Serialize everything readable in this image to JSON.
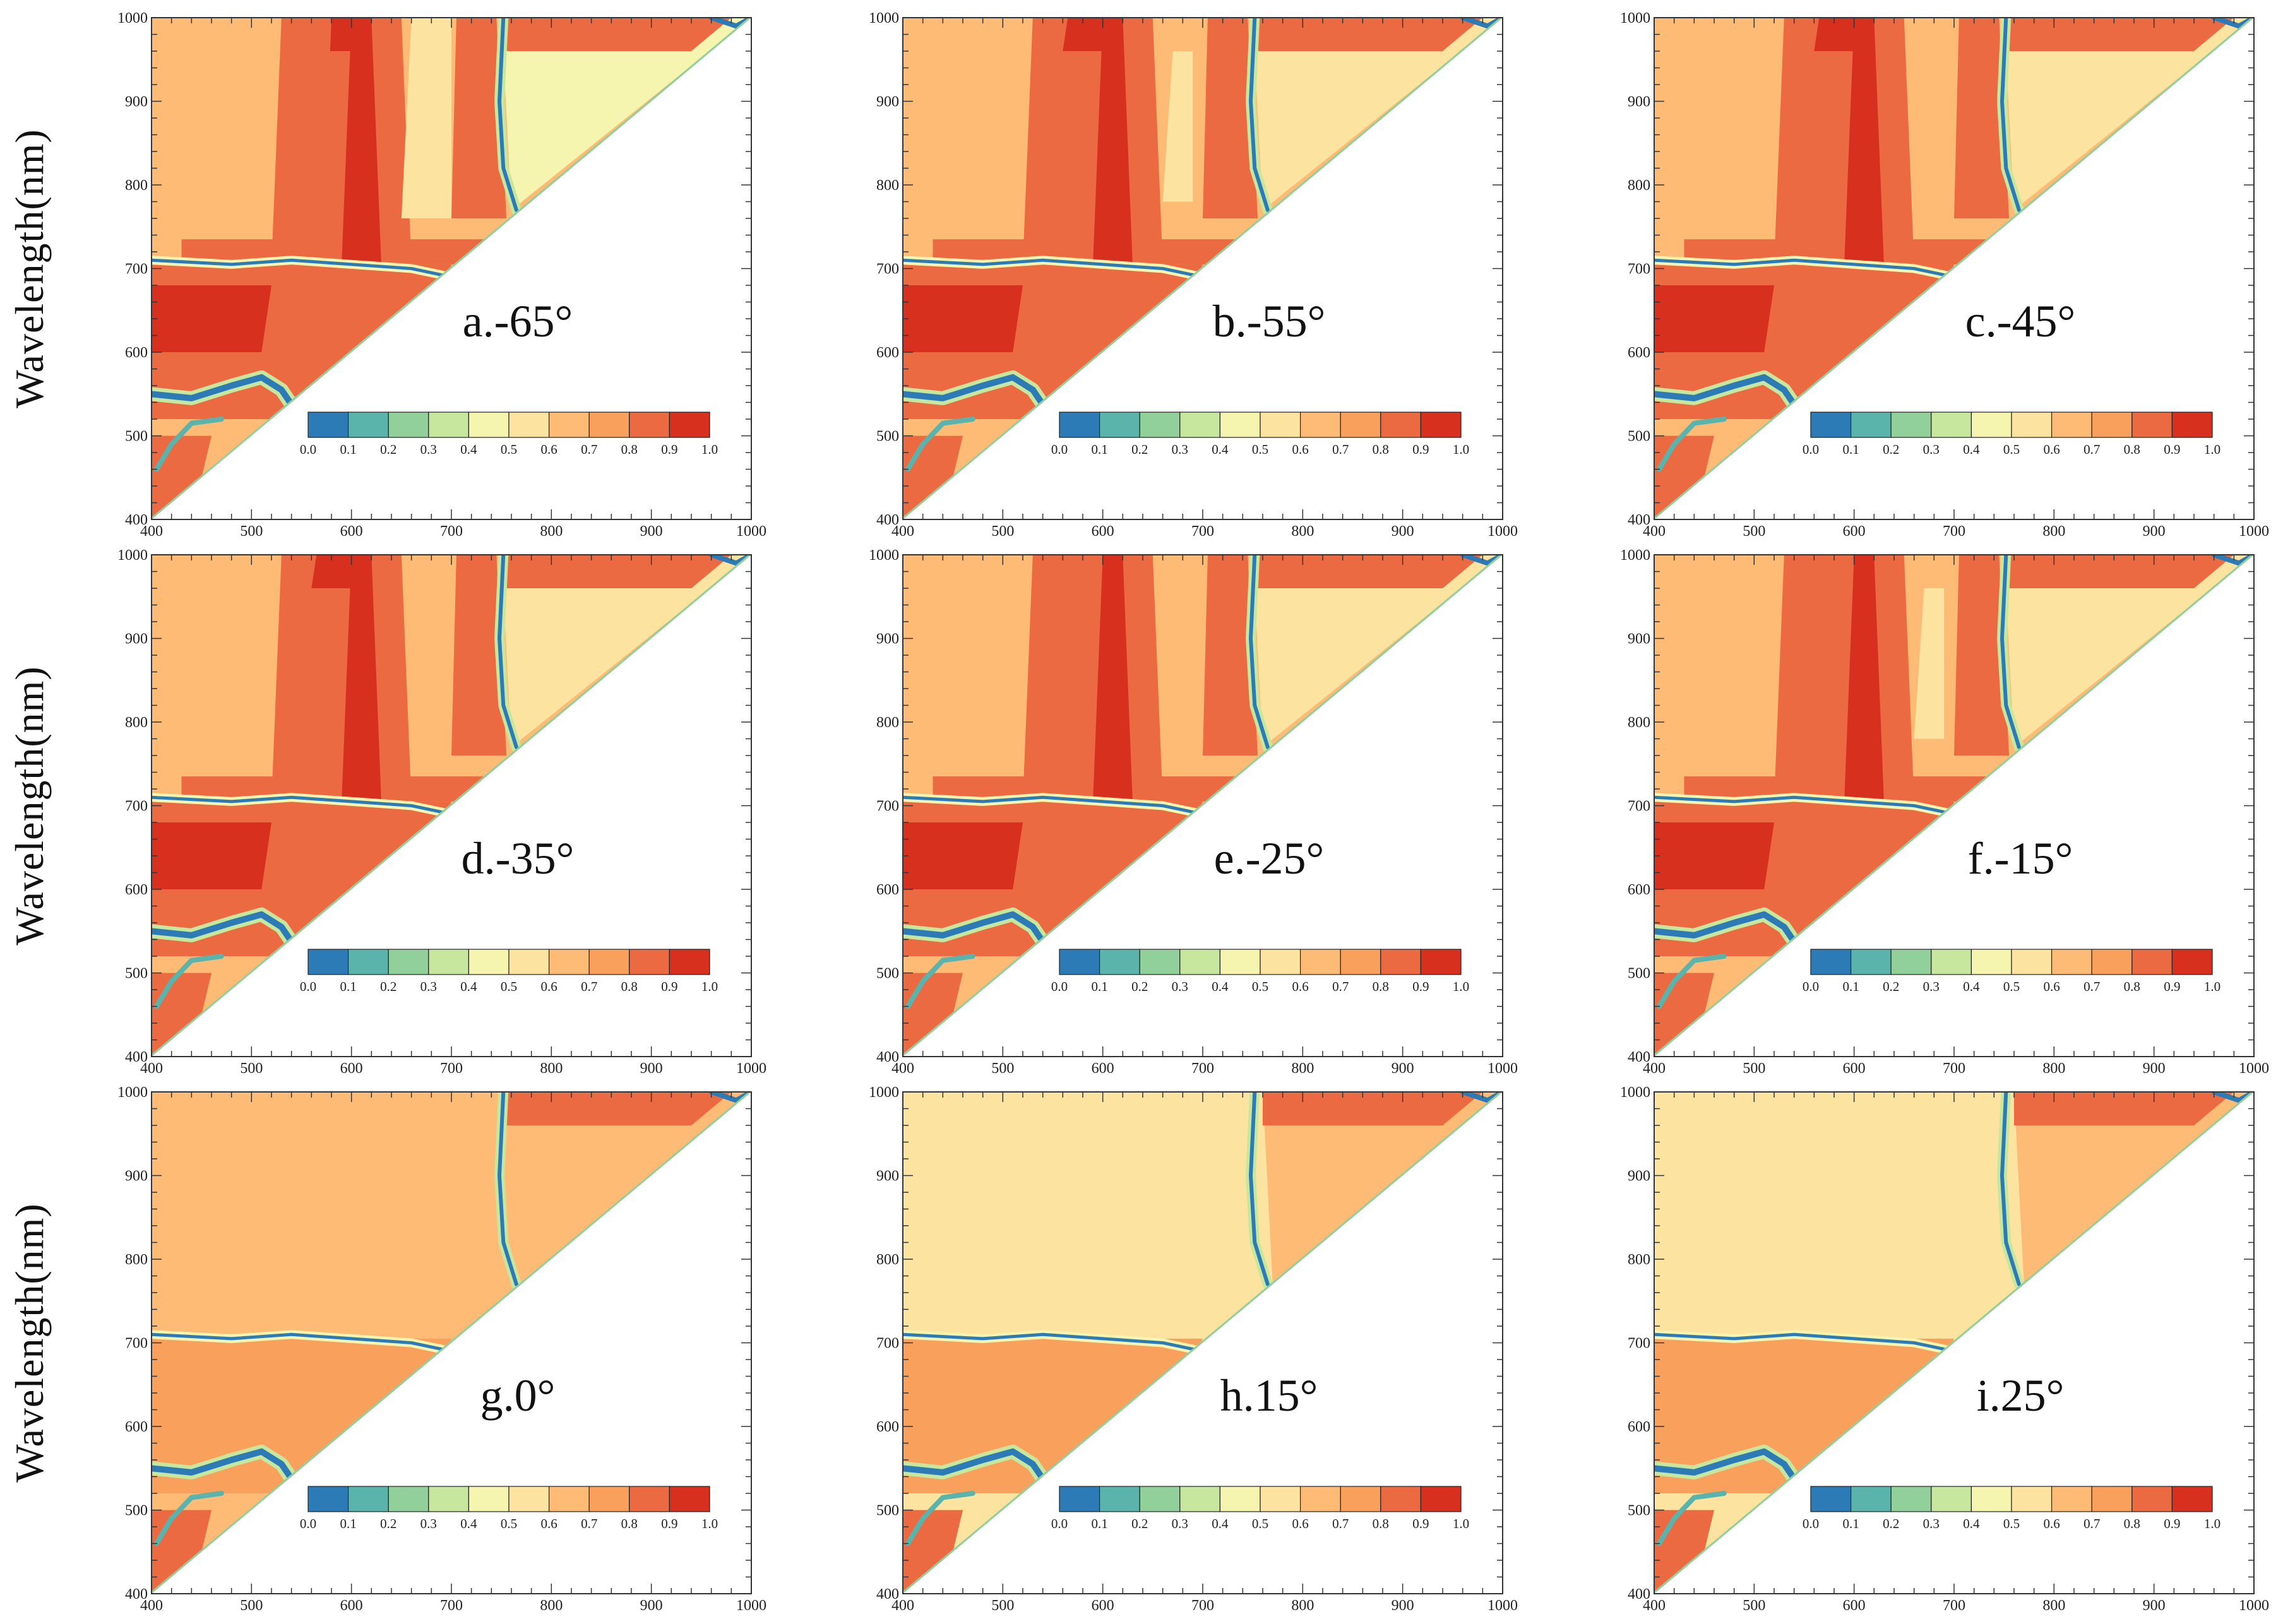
{
  "chart_data": {
    "type": "heatmap",
    "ylabel": "Wavelength(nm)",
    "axis": {
      "xlim": [
        400,
        1000
      ],
      "ylim": [
        400,
        1000
      ],
      "ticks": [
        400,
        500,
        600,
        700,
        800,
        900,
        1000
      ],
      "tick_labels": [
        "400",
        "500",
        "600",
        "700",
        "800",
        "900",
        "1000"
      ]
    },
    "colorbar": {
      "ticks": [
        "0.0",
        "0.1",
        "0.2",
        "0.3",
        "0.4",
        "0.5",
        "0.6",
        "0.7",
        "0.8",
        "0.9",
        "1.0"
      ],
      "colors": [
        "#2c7bb6",
        "#5ab4ac",
        "#91cf9b",
        "#c7e79e",
        "#f5f5b0",
        "#fde3a0",
        "#fdbb76",
        "#f9a05c",
        "#ec6a41",
        "#d7301f"
      ]
    },
    "panels": [
      {
        "label": "a.-65°",
        "angle": -65
      },
      {
        "label": "b.-55°",
        "angle": -55
      },
      {
        "label": "c.-45°",
        "angle": -45
      },
      {
        "label": "d.-35°",
        "angle": -35
      },
      {
        "label": "e.-25°",
        "angle": -25
      },
      {
        "label": "f.-15°",
        "angle": -15
      },
      {
        "label": "g.0°",
        "angle": 0
      },
      {
        "label": "h.15°",
        "angle": 15
      },
      {
        "label": "i.25°",
        "angle": 25
      }
    ]
  }
}
